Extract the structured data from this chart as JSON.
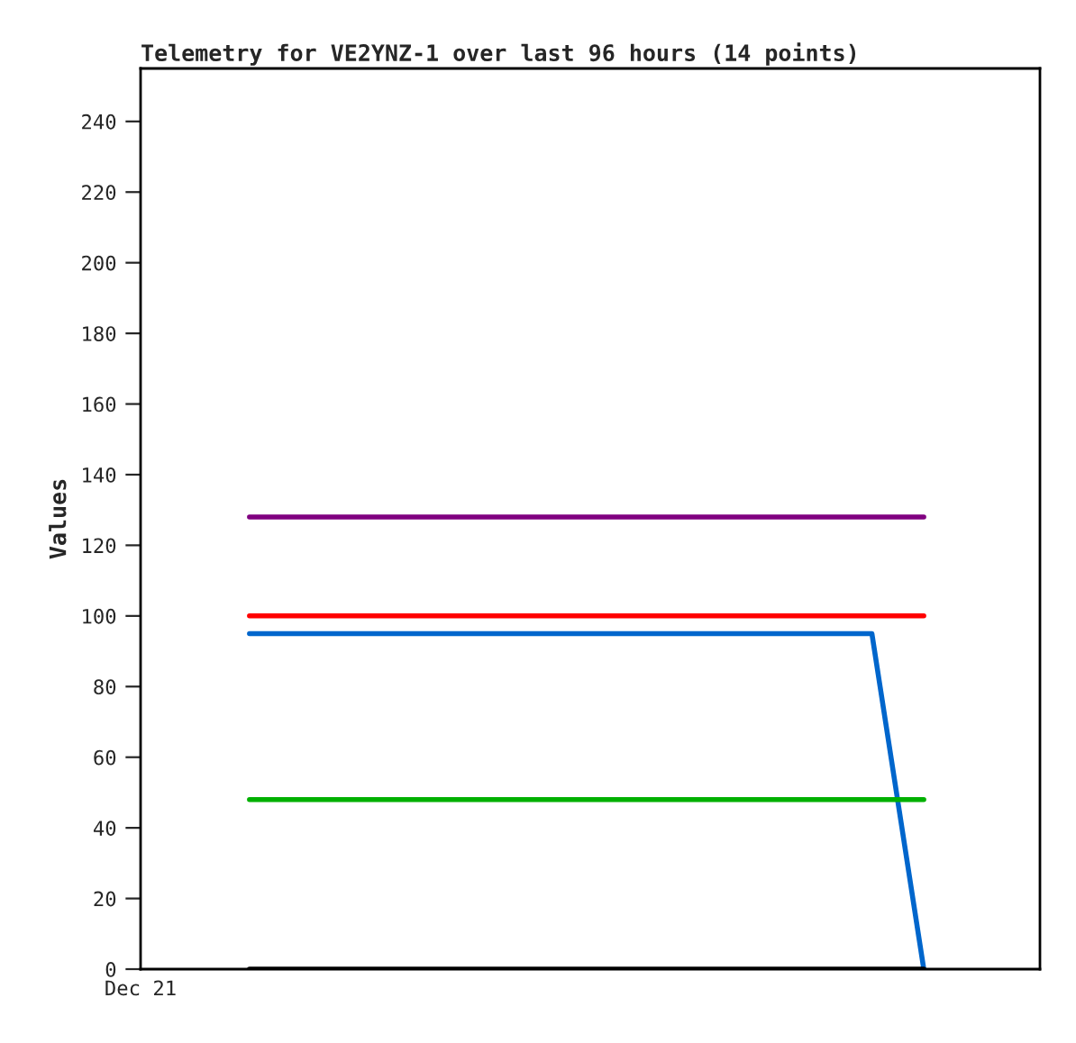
{
  "chart_data": {
    "type": "line",
    "title": "Telemetry for VE2YNZ-1 over last 96 hours (14 points)",
    "ylabel": "Values",
    "categories": [
      null,
      null,
      null,
      null,
      null,
      null,
      null,
      null,
      null,
      null,
      null,
      null,
      null,
      null
    ],
    "series": [
      {
        "color": "#800080",
        "values": [
          128,
          128,
          128,
          128,
          128,
          128,
          128,
          128,
          128,
          128,
          128,
          128,
          128,
          128
        ]
      },
      {
        "color": "#ff0000",
        "values": [
          100,
          100,
          100,
          100,
          100,
          100,
          100,
          100,
          100,
          100,
          100,
          100,
          100,
          100
        ]
      },
      {
        "color": "#0066cc",
        "values": [
          95,
          95,
          95,
          95,
          95,
          95,
          95,
          95,
          95,
          95,
          95,
          95,
          95,
          0
        ]
      },
      {
        "color": "#00b000",
        "values": [
          48,
          48,
          48,
          48,
          48,
          48,
          48,
          48,
          48,
          48,
          48,
          48,
          48,
          48
        ]
      },
      {
        "color": "#000000",
        "values": [
          0,
          0,
          0,
          0,
          0,
          0,
          0,
          0,
          0,
          0,
          0,
          0,
          0,
          0
        ]
      }
    ],
    "annotations": [
      "Dec 21"
    ],
    "ylim": [
      0,
      255
    ],
    "yticks": [
      0,
      20,
      40,
      60,
      80,
      100,
      120,
      140,
      160,
      180,
      200,
      220,
      240
    ],
    "grid": false,
    "legend": false,
    "marker": "none",
    "line_style": "solid"
  }
}
